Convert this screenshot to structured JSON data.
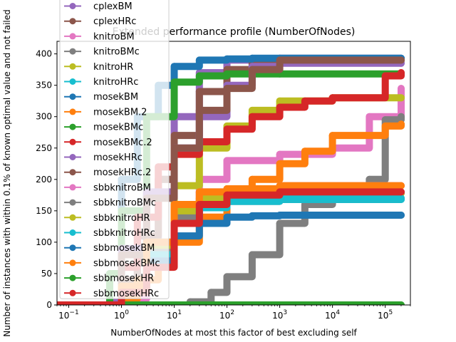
{
  "chart_data": {
    "type": "line",
    "title": "Extended performance profile (NumberOfNodes)",
    "xlabel": "NumberOfNodes at most this factor of best excluding self",
    "ylabel": "Number of instances with within 0.1% of known optimal value and not failed",
    "xscale": "log",
    "xlim": [
      0.06,
      300000
    ],
    "ylim": [
      0,
      420
    ],
    "xticks": [
      {
        "value": 0.1,
        "base": "10",
        "exp": "−1"
      },
      {
        "value": 1,
        "base": "10",
        "exp": "0"
      },
      {
        "value": 10,
        "base": "10",
        "exp": "1"
      },
      {
        "value": 100,
        "base": "10",
        "exp": "2"
      },
      {
        "value": 1000,
        "base": "10",
        "exp": "3"
      },
      {
        "value": 10000,
        "base": "10",
        "exp": "4"
      },
      {
        "value": 100000,
        "base": "10",
        "exp": "5"
      }
    ],
    "yticks": [
      "0",
      "50",
      "100",
      "150",
      "200",
      "250",
      "300",
      "350",
      "400"
    ],
    "grid": false,
    "legend_position": "upper left",
    "series": [
      {
        "name": "cplexBM",
        "color": "#9467bd",
        "x": [
          0.06,
          0.6,
          1,
          2,
          5,
          10,
          30,
          100,
          300,
          1000,
          200000
        ],
        "y": [
          0,
          5,
          30,
          90,
          200,
          300,
          370,
          390,
          392,
          393,
          393
        ]
      },
      {
        "name": "cplexHRc",
        "color": "#8c564b",
        "x": [
          0.06,
          1,
          2,
          5,
          10,
          30,
          100,
          300,
          1000,
          200000
        ],
        "y": [
          0,
          40,
          110,
          200,
          270,
          340,
          375,
          385,
          390,
          390
        ]
      },
      {
        "name": "knitroBM",
        "color": "#e377c2",
        "x": [
          0.06,
          0.6,
          1,
          3,
          10,
          30,
          100,
          1000,
          10000,
          50000,
          200000
        ],
        "y": [
          0,
          0,
          10,
          80,
          150,
          200,
          230,
          240,
          250,
          300,
          345
        ]
      },
      {
        "name": "knitroBMc",
        "color": "#7f7f7f",
        "x": [
          0.06,
          5,
          20,
          50,
          100,
          300,
          1000,
          3000,
          10000,
          50000,
          100000,
          200000
        ],
        "y": [
          0,
          0,
          5,
          20,
          45,
          80,
          130,
          160,
          175,
          200,
          295,
          300
        ]
      },
      {
        "name": "knitroHR",
        "color": "#bcbd22",
        "x": [
          0.06,
          0.6,
          1,
          3,
          10,
          30,
          100,
          300,
          1000,
          10000,
          200000
        ],
        "y": [
          0,
          0,
          20,
          100,
          190,
          250,
          285,
          310,
          325,
          330,
          330
        ]
      },
      {
        "name": "knitroHRc",
        "color": "#17becf",
        "x": [
          0.06,
          0.5,
          1,
          3,
          10,
          30,
          100,
          1000,
          200000
        ],
        "y": [
          0,
          0,
          30,
          100,
          140,
          160,
          165,
          168,
          168
        ]
      },
      {
        "name": "mosekBM",
        "color": "#1f77b4",
        "x": [
          0.06,
          0.6,
          1,
          2,
          5,
          10,
          30,
          100,
          300,
          1000,
          200000
        ],
        "y": [
          0,
          50,
          200,
          300,
          350,
          380,
          390,
          392,
          393,
          393,
          393
        ]
      },
      {
        "name": "mosekBM.2",
        "color": "#ff7f0e",
        "x": [
          0.06,
          1,
          2,
          5,
          10,
          30,
          100,
          300,
          1000,
          3000,
          10000,
          100000,
          200000
        ],
        "y": [
          0,
          10,
          40,
          75,
          100,
          140,
          170,
          200,
          225,
          245,
          270,
          285,
          288
        ]
      },
      {
        "name": "mosekBMc",
        "color": "#2ca02c",
        "x": [
          0.06,
          0.6,
          1,
          3,
          10,
          30,
          100,
          300,
          1000,
          200000
        ],
        "y": [
          0,
          50,
          150,
          300,
          355,
          365,
          368,
          368,
          368,
          368
        ]
      },
      {
        "name": "mosekBMc.2",
        "color": "#d62728",
        "x": [
          0.06,
          1,
          2,
          5,
          10,
          30,
          100,
          300,
          1000,
          3000,
          10000,
          100000,
          200000
        ],
        "y": [
          0,
          60,
          140,
          220,
          240,
          260,
          280,
          300,
          315,
          325,
          330,
          365,
          370
        ]
      },
      {
        "name": "mosekHRc",
        "color": "#9467bd",
        "x": [
          0.06,
          1,
          3,
          10,
          30,
          100,
          300,
          1000,
          200000
        ],
        "y": [
          0,
          90,
          180,
          250,
          300,
          350,
          380,
          385,
          385
        ]
      },
      {
        "name": "mosekHRc.2",
        "color": "#8c564b",
        "x": [
          0.06,
          1,
          3,
          10,
          30,
          100,
          300,
          1000,
          200000
        ],
        "y": [
          0,
          80,
          170,
          250,
          310,
          345,
          375,
          390,
          390
        ]
      },
      {
        "name": "sbbknitroBM",
        "color": "#e377c2",
        "x": [
          0.06,
          1,
          3,
          10,
          30,
          100,
          1000,
          200000
        ],
        "y": [
          0,
          30,
          100,
          160,
          180,
          185,
          190,
          190
        ]
      },
      {
        "name": "sbbknitroBMc",
        "color": "#7f7f7f",
        "x": [
          0.06,
          1,
          3,
          10,
          30,
          100,
          1000,
          200000
        ],
        "y": [
          0,
          25,
          90,
          140,
          160,
          165,
          170,
          170
        ]
      },
      {
        "name": "sbbknitroHR",
        "color": "#bcbd22",
        "x": [
          0.06,
          1,
          3,
          10,
          30,
          100,
          1000,
          200000
        ],
        "y": [
          0,
          30,
          95,
          150,
          170,
          175,
          178,
          178
        ]
      },
      {
        "name": "sbbknitroHRc",
        "color": "#17becf",
        "x": [
          0.06,
          1,
          3,
          10,
          30,
          100,
          1000,
          200000
        ],
        "y": [
          0,
          20,
          80,
          130,
          155,
          165,
          170,
          170
        ]
      },
      {
        "name": "sbbmosekBM",
        "color": "#1f77b4",
        "x": [
          0.06,
          1,
          3,
          10,
          30,
          100,
          300,
          1000,
          200000
        ],
        "y": [
          0,
          20,
          70,
          110,
          130,
          140,
          142,
          143,
          143
        ]
      },
      {
        "name": "sbbmosekBMc",
        "color": "#ff7f0e",
        "x": [
          0.06,
          1,
          3,
          10,
          30,
          100,
          1000,
          200000
        ],
        "y": [
          0,
          30,
          100,
          160,
          180,
          185,
          190,
          190
        ]
      },
      {
        "name": "sbbmosekHR",
        "color": "#2ca02c",
        "x": [
          0.06,
          200000
        ],
        "y": [
          0,
          0
        ]
      },
      {
        "name": "sbbmosekHRc",
        "color": "#d62728",
        "x": [
          0.06,
          1,
          3,
          10,
          30,
          100,
          1000,
          200000
        ],
        "y": [
          0,
          20,
          60,
          130,
          160,
          175,
          180,
          180
        ]
      }
    ]
  }
}
